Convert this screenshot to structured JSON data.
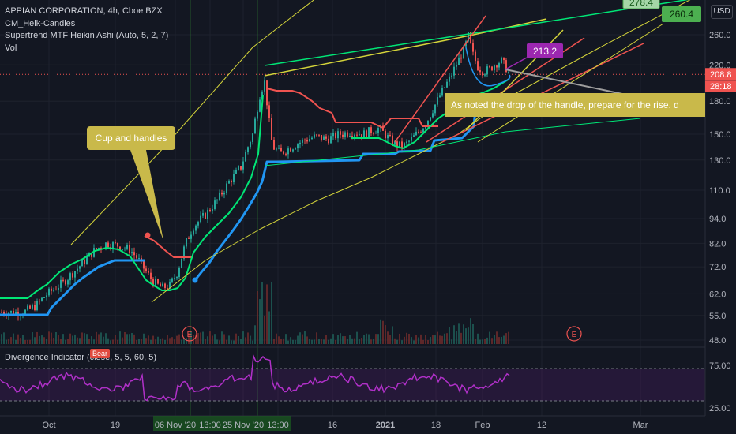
{
  "header": {
    "title": "APPIAN CORPORATION, 4h, Cboe BZX",
    "indicator_1": "CM_Heik-Candles",
    "indicator_2": "Supertrend MTF Heikin Ashi (Auto, 5, 2, 7)",
    "indicator_3": "Vol",
    "currency": "USD"
  },
  "price_axis": {
    "ticks": [
      "260.0",
      "220.0",
      "180.0",
      "150.0",
      "130.0",
      "110.0",
      "94.0",
      "82.0",
      "72.0",
      "62.0",
      "55.0",
      "48.0"
    ],
    "last_price": "208.8",
    "countdown": "28:18"
  },
  "divergence": {
    "title": "Divergence Indicator (close, 5, 5, 60, 5)",
    "ticks": [
      "75.00",
      "25.00"
    ],
    "bear_label": "Bear"
  },
  "time_axis": {
    "labels": [
      "Oct",
      "19",
      "06 Nov '20",
      "13:00",
      "25 Nov '20",
      "13:00",
      "16",
      "2021",
      "18",
      "Feb",
      "12",
      "Mar"
    ]
  },
  "annotations": {
    "cup_callout": "Cup and handles",
    "handle_note": "As noted the drop of the handle, prepare for the rise. d",
    "target_1": "278.4",
    "target_2": "260.4",
    "marker_price": "213.2",
    "earnings_mark": "E"
  },
  "colors": {
    "background": "#131722",
    "up": "#26a69a",
    "down": "#ef5350",
    "supertrend_up": "#2196f3",
    "trail_green": "#00e676",
    "trail_red": "#ef5350",
    "trendline_yellow": "#d4d43a",
    "divergence_line": "#b030c8",
    "callout_fill": "#c9b94a",
    "target_green": "#4caf50",
    "marker_purple": "#9c27b0"
  },
  "chart_data": {
    "type": "candlestick",
    "title": "APPIAN CORPORATION, 4h, Cboe BZX",
    "y_scale": "log",
    "ylim": [
      45,
      300
    ],
    "x_range": [
      "Oct 2020",
      "Mar 2021"
    ],
    "price_path": [
      {
        "x": "Oct",
        "y": 56
      },
      {
        "x": "Oct",
        "y": 62
      },
      {
        "x": "19",
        "y": 79
      },
      {
        "x": "19",
        "y": 84
      },
      {
        "x": "19",
        "y": 72
      },
      {
        "x": "06 Nov '20",
        "y": 65
      },
      {
        "x": "06 Nov '20",
        "y": 90
      },
      {
        "x": "13:00",
        "y": 112
      },
      {
        "x": "25 Nov '20",
        "y": 190
      },
      {
        "x": "13:00",
        "y": 140
      },
      {
        "x": "16",
        "y": 152
      },
      {
        "x": "2021",
        "y": 140
      },
      {
        "x": "18",
        "y": 200
      },
      {
        "x": "Feb",
        "y": 258
      },
      {
        "x": "Feb",
        "y": 212
      },
      {
        "x": "Feb",
        "y": 220
      },
      {
        "x": "Feb",
        "y": 208.8
      }
    ],
    "last_price": 208.8,
    "volume_note": "Vol histogram at bottom of price pane",
    "divergence_indicator": {
      "name": "Divergence Indicator (close, 5, 5, 60, 5)",
      "band": [
        25,
        75
      ]
    }
  }
}
